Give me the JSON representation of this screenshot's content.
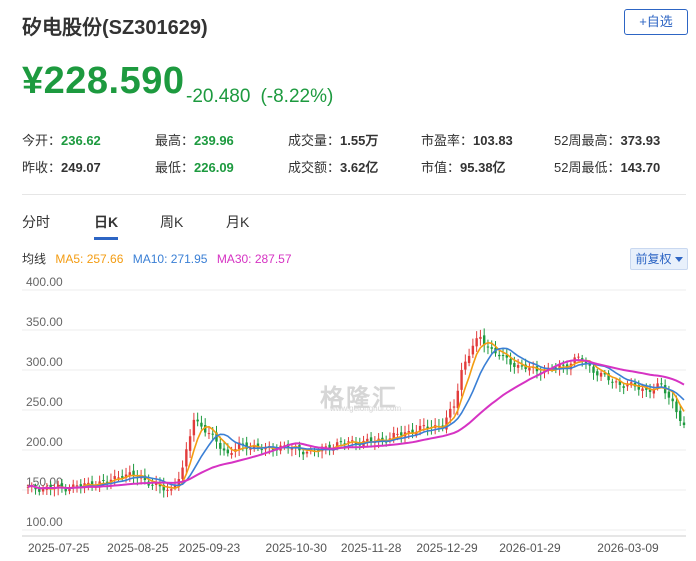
{
  "header": {
    "title": "矽电股份(SZ301629)",
    "fav_label": "+自选"
  },
  "quote": {
    "price": "¥228.590",
    "change": "-20.480",
    "change_pct": "(-8.22%)",
    "color_down": "#1d9a3f"
  },
  "stats": [
    {
      "label": "今开：",
      "value": "236.62",
      "style": "up"
    },
    {
      "label": "最高：",
      "value": "239.96",
      "style": "up"
    },
    {
      "label": "成交量：",
      "value": "1.55万",
      "style": "neutral"
    },
    {
      "label": "市盈率：",
      "value": "103.83",
      "style": "neutral"
    },
    {
      "label": "52周最高：",
      "value": "373.93",
      "style": "neutral"
    },
    {
      "label": "昨收：",
      "value": "249.07",
      "style": "neutral"
    },
    {
      "label": "最低：",
      "value": "226.09",
      "style": "up"
    },
    {
      "label": "成交额：",
      "value": "3.62亿",
      "style": "neutral"
    },
    {
      "label": "市值：",
      "value": "95.38亿",
      "style": "neutral"
    },
    {
      "label": "52周最低：",
      "value": "143.70",
      "style": "neutral"
    }
  ],
  "tabs": [
    "分时",
    "日K",
    "周K",
    "月K"
  ],
  "active_tab": "日K",
  "ma": {
    "label": "均线",
    "ma5": "MA5: 257.66",
    "ma10": "MA10: 271.95",
    "ma30": "MA30: 287.57",
    "ma5_color": "#f39c12",
    "ma10_color": "#3a7fd5",
    "ma30_color": "#d633c3"
  },
  "adjust_label": "前复权",
  "watermark": "格隆汇",
  "watermark_sub": "www.gelonghui.com",
  "chart_data": {
    "type": "line",
    "y_ticks": [
      "400.00",
      "350.00",
      "300.00",
      "250.00",
      "200.00",
      "150.00",
      "100.00"
    ],
    "ylim": [
      100,
      400
    ],
    "x_ticks": [
      "2025-07-25",
      "2025-08-25",
      "2025-09-23",
      "2025-10-30",
      "2025-11-28",
      "2025-12-29",
      "2026-01-29",
      "2026-03-09"
    ],
    "x_tick_index": [
      0,
      21,
      40,
      63,
      83,
      103,
      125,
      151
    ],
    "n_days": 175,
    "close_anchors": [
      [
        0,
        152
      ],
      [
        10,
        153
      ],
      [
        21,
        160
      ],
      [
        25,
        170
      ],
      [
        30,
        165
      ],
      [
        35,
        152
      ],
      [
        38,
        150
      ],
      [
        41,
        175
      ],
      [
        44,
        240
      ],
      [
        47,
        225
      ],
      [
        50,
        210
      ],
      [
        53,
        195
      ],
      [
        56,
        205
      ],
      [
        60,
        205
      ],
      [
        63,
        200
      ],
      [
        67,
        205
      ],
      [
        72,
        200
      ],
      [
        76,
        198
      ],
      [
        80,
        205
      ],
      [
        85,
        210
      ],
      [
        90,
        210
      ],
      [
        96,
        215
      ],
      [
        100,
        222
      ],
      [
        103,
        225
      ],
      [
        107,
        230
      ],
      [
        110,
        230
      ],
      [
        113,
        255
      ],
      [
        115,
        300
      ],
      [
        118,
        330
      ],
      [
        120,
        340
      ],
      [
        123,
        325
      ],
      [
        126,
        315
      ],
      [
        130,
        305
      ],
      [
        134,
        300
      ],
      [
        138,
        300
      ],
      [
        142,
        305
      ],
      [
        146,
        315
      ],
      [
        150,
        300
      ],
      [
        155,
        285
      ],
      [
        160,
        280
      ],
      [
        164,
        275
      ],
      [
        168,
        280
      ],
      [
        171,
        260
      ],
      [
        174,
        228
      ]
    ],
    "series": [
      {
        "name": "MA5",
        "key": "ma5",
        "color": "#f39c12"
      },
      {
        "name": "MA10",
        "key": "ma10",
        "color": "#3a7fd5"
      },
      {
        "name": "MA30",
        "key": "ma30",
        "color": "#d633c3"
      }
    ],
    "candle_up_color": "#e23b3b",
    "candle_down_color": "#1d9a3f"
  }
}
